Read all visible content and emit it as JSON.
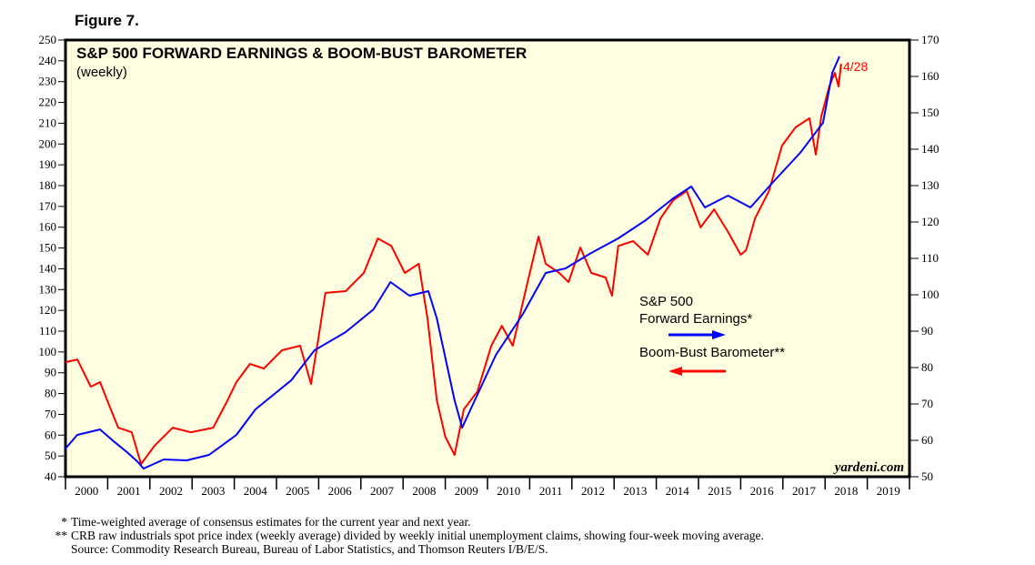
{
  "figure_label": "Figure 7.",
  "chart_data": {
    "type": "line",
    "title": "S&P 500 FORWARD EARNINGS & BOOM-BUST BAROMETER",
    "subtitle": "(weekly)",
    "watermark": "yardeni.com",
    "end_label": "4/28",
    "x_ticks": [
      "2000",
      "2001",
      "2002",
      "2003",
      "2004",
      "2005",
      "2006",
      "2007",
      "2008",
      "2009",
      "2010",
      "2011",
      "2012",
      "2013",
      "2014",
      "2015",
      "2016",
      "2017",
      "2018",
      "2019"
    ],
    "xlim": [
      2000,
      2020
    ],
    "ylim_left": [
      40,
      250
    ],
    "ylim_right": [
      50,
      170
    ],
    "y_ticks_left": [
      40,
      50,
      60,
      70,
      80,
      90,
      100,
      110,
      120,
      130,
      140,
      150,
      160,
      170,
      180,
      190,
      200,
      210,
      220,
      230,
      240,
      250
    ],
    "y_ticks_right": [
      50,
      60,
      70,
      80,
      90,
      100,
      110,
      120,
      130,
      140,
      150,
      160,
      170
    ],
    "grid": false,
    "legend_placement": "center-right",
    "series": [
      {
        "name": "S&P 500 Forward Earnings*",
        "axis": "right",
        "color": "#0000ff",
        "x": [
          2000.0,
          2000.28,
          2000.82,
          2001.14,
          2001.46,
          2001.72,
          2001.85,
          2002.33,
          2002.87,
          2003.4,
          2004.05,
          2004.5,
          2005.35,
          2005.9,
          2006.64,
          2007.3,
          2007.7,
          2008.15,
          2008.6,
          2008.8,
          2009.22,
          2009.4,
          2009.6,
          2010.2,
          2010.84,
          2011.38,
          2011.85,
          2012.46,
          2013.1,
          2013.75,
          2014.4,
          2014.83,
          2015.15,
          2015.7,
          2016.23,
          2016.77,
          2017.41,
          2017.95,
          2018.17,
          2018.34
        ],
        "y": [
          57.75,
          61.5,
          63,
          59.75,
          56.75,
          54,
          52.25,
          54.75,
          54.5,
          56,
          61.5,
          68.5,
          76.5,
          84.75,
          89.75,
          96,
          103.5,
          99.75,
          101,
          93.5,
          71,
          63.5,
          68.5,
          83.5,
          94.75,
          106,
          107.25,
          111.5,
          115.5,
          120.5,
          126.5,
          129.75,
          124,
          127.25,
          124,
          131,
          139,
          147.25,
          161,
          165.5
        ]
      },
      {
        "name": "Boom-Bust Barometer**",
        "axis": "left",
        "color": "#ff0000",
        "x": [
          2000.0,
          2000.28,
          2000.6,
          2000.82,
          2001.03,
          2001.25,
          2001.57,
          2001.79,
          2002.11,
          2002.54,
          2002.97,
          2003.5,
          2003.84,
          2004.05,
          2004.37,
          2004.7,
          2005.13,
          2005.56,
          2005.82,
          2006.0,
          2006.16,
          2006.64,
          2007.07,
          2007.4,
          2007.72,
          2008.04,
          2008.37,
          2008.58,
          2008.8,
          2009.0,
          2009.22,
          2009.44,
          2009.76,
          2010.09,
          2010.34,
          2010.6,
          2010.95,
          2011.21,
          2011.38,
          2011.7,
          2011.92,
          2012.2,
          2012.46,
          2012.8,
          2012.95,
          2013.1,
          2013.45,
          2013.8,
          2014.1,
          2014.4,
          2014.72,
          2015.05,
          2015.37,
          2015.7,
          2016.0,
          2016.13,
          2016.34,
          2016.67,
          2016.98,
          2017.3,
          2017.63,
          2017.78,
          2017.91,
          2018.1,
          2018.23,
          2018.32,
          2018.38
        ],
        "y": [
          95.1,
          96.4,
          83.3,
          85.5,
          74.6,
          63.6,
          61.4,
          46.1,
          54.9,
          63.6,
          61.4,
          63.6,
          76.75,
          85.5,
          94.25,
          92,
          100.8,
          103,
          84.6,
          107.4,
          128.4,
          129.25,
          138,
          154.6,
          151,
          138,
          142.4,
          116,
          76.75,
          59.25,
          50.5,
          72.4,
          81,
          103,
          112.6,
          103,
          133.6,
          155.5,
          142.4,
          138,
          133.6,
          150.25,
          138,
          135.8,
          127,
          151,
          153.3,
          146.75,
          164.25,
          173,
          177.4,
          159.9,
          168.6,
          157.7,
          146.75,
          149,
          164.25,
          177.4,
          199.25,
          208,
          212.4,
          194.9,
          213.25,
          227.7,
          234.25,
          227.7,
          238.6
        ]
      }
    ]
  },
  "legend": {
    "earnings_line1": "S&P 500",
    "earnings_line2": "Forward Earnings*",
    "barometer": "Boom-Bust Barometer**"
  },
  "footnotes": [
    {
      "mark": "*",
      "text": "Time-weighted average of consensus estimates for the current year and next year."
    },
    {
      "mark": "**",
      "text": "CRB raw industrials spot price index (weekly average) divided by weekly initial unemployment claims, showing four-week moving average."
    },
    {
      "mark": "",
      "text": "Source: Commodity Research Bureau, Bureau of Labor Statistics, and Thomson Reuters I/B/E/S."
    }
  ]
}
